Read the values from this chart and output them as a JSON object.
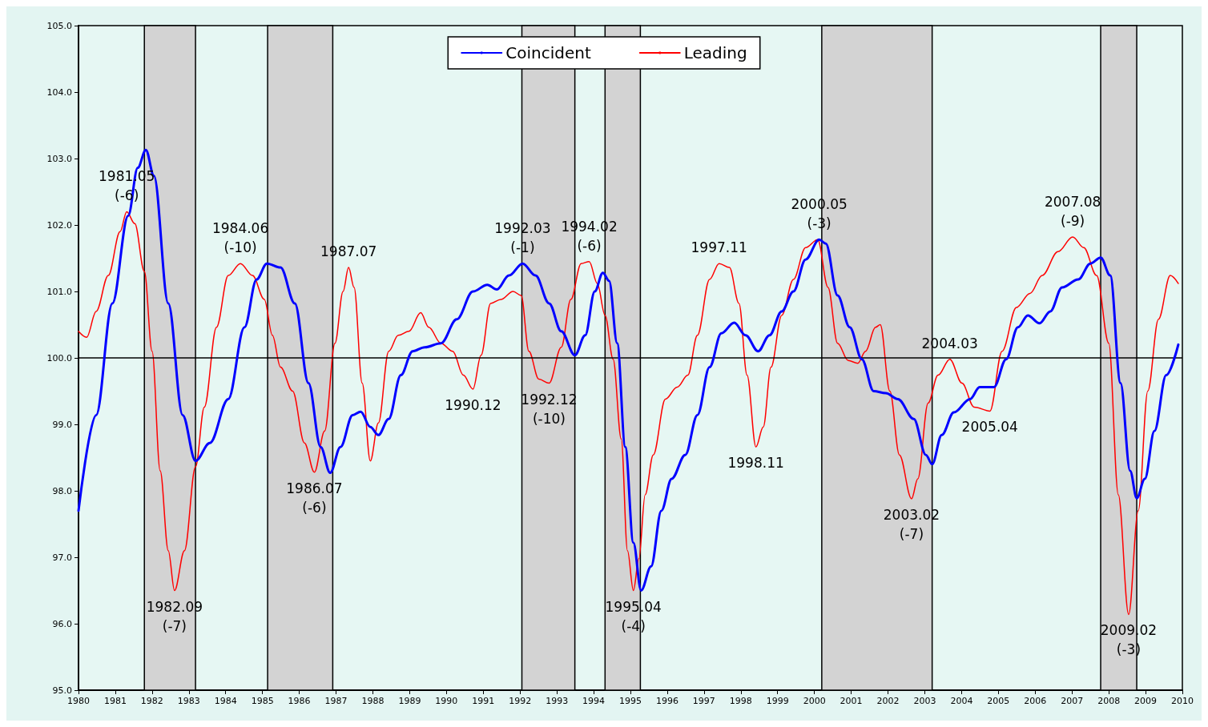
{
  "chart_data": {
    "type": "line",
    "xlim": [
      1980,
      2010
    ],
    "ylim": [
      95,
      105
    ],
    "xticks": [
      1980,
      1981,
      1982,
      1983,
      1984,
      1985,
      1986,
      1987,
      1988,
      1989,
      1990,
      1991,
      1992,
      1993,
      1994,
      1995,
      1996,
      1997,
      1998,
      1999,
      2000,
      2001,
      2002,
      2003,
      2004,
      2005,
      2006,
      2007,
      2008,
      2009,
      2010
    ],
    "yticks": [
      {
        "value": 95,
        "label": "95.0"
      },
      {
        "value": 96,
        "label": "96.0"
      },
      {
        "value": 97,
        "label": "97.0"
      },
      {
        "value": 98,
        "label": "98.0"
      },
      {
        "value": 99,
        "label": "99.0"
      },
      {
        "value": 100,
        "label": "100.0"
      },
      {
        "value": 101,
        "label": "101.0"
      },
      {
        "value": 102,
        "label": "102.0"
      },
      {
        "value": 103,
        "label": "103.0"
      },
      {
        "value": 104,
        "label": "104.0"
      },
      {
        "value": 105,
        "label": "105.0"
      }
    ],
    "grid": false,
    "legend": "top",
    "marker": "none",
    "line_style": "solid",
    "series": [
      {
        "name": "Coincident",
        "color": "#0000ff",
        "x": [
          1980.0,
          1980.48,
          1980.92,
          1981.35,
          1981.61,
          1981.83,
          1982.05,
          1982.44,
          1982.83,
          1983.18,
          1983.57,
          1984.07,
          1984.51,
          1984.84,
          1985.12,
          1985.49,
          1985.88,
          1986.25,
          1986.58,
          1986.84,
          1987.12,
          1987.45,
          1987.67,
          1987.93,
          1988.15,
          1988.43,
          1988.76,
          1989.08,
          1989.41,
          1989.85,
          1990.28,
          1990.72,
          1991.11,
          1991.37,
          1991.7,
          1992.07,
          1992.42,
          1992.79,
          1993.12,
          1993.49,
          1993.77,
          1994.03,
          1994.25,
          1994.42,
          1994.64,
          1994.86,
          1995.08,
          1995.29,
          1995.56,
          1995.84,
          1996.12,
          1996.49,
          1996.82,
          1997.15,
          1997.47,
          1997.82,
          1998.13,
          1998.47,
          1998.78,
          1999.11,
          1999.43,
          1999.76,
          2000.13,
          2000.31,
          2000.63,
          2000.96,
          2001.29,
          2001.61,
          2001.94,
          2002.27,
          2002.7,
          2003.03,
          2003.2,
          2003.46,
          2003.79,
          2004.23,
          2004.49,
          2004.88,
          2005.21,
          2005.53,
          2005.8,
          2006.12,
          2006.41,
          2006.73,
          2007.17,
          2007.5,
          2007.78,
          2008.04,
          2008.32,
          2008.58,
          2008.76,
          2008.98,
          2009.24,
          2009.56,
          2009.89
        ],
        "values": [
          97.7,
          99.14,
          100.82,
          102.14,
          102.86,
          103.13,
          102.74,
          100.82,
          99.14,
          98.45,
          98.72,
          99.38,
          100.46,
          101.18,
          101.42,
          101.36,
          100.82,
          99.62,
          98.66,
          98.27,
          98.66,
          99.14,
          99.19,
          98.96,
          98.84,
          99.08,
          99.74,
          100.1,
          100.16,
          100.22,
          100.58,
          101.0,
          101.1,
          101.03,
          101.24,
          101.42,
          101.24,
          100.82,
          100.4,
          100.04,
          100.34,
          101.0,
          101.28,
          101.16,
          100.22,
          98.66,
          97.22,
          96.5,
          96.86,
          97.7,
          98.18,
          98.54,
          99.14,
          99.86,
          100.37,
          100.53,
          100.34,
          100.1,
          100.34,
          100.7,
          101.0,
          101.48,
          101.78,
          101.72,
          100.94,
          100.46,
          99.98,
          99.5,
          99.47,
          99.38,
          99.08,
          98.54,
          98.4,
          98.84,
          99.18,
          99.38,
          99.56,
          99.56,
          99.98,
          100.46,
          100.64,
          100.52,
          100.7,
          101.06,
          101.18,
          101.42,
          101.51,
          101.24,
          99.62,
          98.3,
          97.89,
          98.18,
          98.9,
          99.74,
          100.2
        ]
      },
      {
        "name": "Leading",
        "color": "#ff0000",
        "x": [
          1980.0,
          1980.22,
          1980.48,
          1980.81,
          1981.13,
          1981.31,
          1981.53,
          1981.79,
          1982.0,
          1982.22,
          1982.44,
          1982.61,
          1982.88,
          1983.18,
          1983.42,
          1983.75,
          1984.07,
          1984.4,
          1984.73,
          1985.05,
          1985.27,
          1985.49,
          1985.82,
          1986.14,
          1986.41,
          1986.69,
          1986.97,
          1987.19,
          1987.34,
          1987.49,
          1987.71,
          1987.93,
          1988.15,
          1988.43,
          1988.69,
          1988.98,
          1989.3,
          1989.52,
          1989.85,
          1990.17,
          1990.46,
          1990.72,
          1990.94,
          1991.2,
          1991.48,
          1991.81,
          1992.03,
          1992.24,
          1992.51,
          1992.79,
          1993.12,
          1993.38,
          1993.66,
          1993.88,
          1994.1,
          1994.31,
          1994.53,
          1994.75,
          1994.92,
          1995.08,
          1995.23,
          1995.4,
          1995.62,
          1995.95,
          1996.27,
          1996.56,
          1996.82,
          1997.15,
          1997.41,
          1997.69,
          1997.95,
          1998.17,
          1998.41,
          1998.61,
          1998.82,
          1999.11,
          1999.43,
          1999.76,
          2000.09,
          2000.37,
          2000.63,
          2000.92,
          2001.18,
          2001.39,
          2001.66,
          2001.79,
          2002.05,
          2002.31,
          2002.64,
          2002.81,
          2003.09,
          2003.36,
          2003.68,
          2004.01,
          2004.34,
          2004.77,
          2005.1,
          2005.49,
          2005.86,
          2006.19,
          2006.62,
          2007.02,
          2007.32,
          2007.67,
          2008.0,
          2008.26,
          2008.54,
          2008.8,
          2009.06,
          2009.35,
          2009.67,
          2009.89
        ],
        "values": [
          100.4,
          100.31,
          100.7,
          101.24,
          101.9,
          102.2,
          102.02,
          101.3,
          100.1,
          98.3,
          97.1,
          96.5,
          97.1,
          98.36,
          99.26,
          100.46,
          101.24,
          101.42,
          101.24,
          100.88,
          100.34,
          99.86,
          99.5,
          98.72,
          98.28,
          98.9,
          100.22,
          101.0,
          101.36,
          101.06,
          99.62,
          98.45,
          99.02,
          100.1,
          100.34,
          100.4,
          100.68,
          100.46,
          100.22,
          100.1,
          99.74,
          99.53,
          100.04,
          100.82,
          100.88,
          101.0,
          100.94,
          100.1,
          99.68,
          99.62,
          100.16,
          100.88,
          101.42,
          101.45,
          101.12,
          100.64,
          99.98,
          98.78,
          97.1,
          96.5,
          96.98,
          97.94,
          98.54,
          99.38,
          99.56,
          99.74,
          100.34,
          101.18,
          101.42,
          101.36,
          100.82,
          99.74,
          98.66,
          98.96,
          99.86,
          100.64,
          101.18,
          101.66,
          101.78,
          101.06,
          100.22,
          99.96,
          99.92,
          100.1,
          100.46,
          100.5,
          99.5,
          98.54,
          97.88,
          98.18,
          99.32,
          99.74,
          99.98,
          99.62,
          99.26,
          99.2,
          100.1,
          100.76,
          100.97,
          101.24,
          101.6,
          101.82,
          101.66,
          101.24,
          100.22,
          97.94,
          96.14,
          97.7,
          99.5,
          100.58,
          101.24,
          101.12
        ]
      }
    ],
    "ref_lines": [
      {
        "axis": "y",
        "value": 100,
        "color": "#000000",
        "line_style": "solid"
      }
    ],
    "bands": [
      {
        "axis": "x",
        "from": 1981.79,
        "to": 1983.18,
        "color": "#d3d3d3"
      },
      {
        "axis": "x",
        "from": 1985.14,
        "to": 1986.91,
        "color": "#d3d3d3"
      },
      {
        "axis": "x",
        "from": 1992.05,
        "to": 1993.49,
        "color": "#d3d3d3"
      },
      {
        "axis": "x",
        "from": 1994.31,
        "to": 1995.27,
        "color": "#d3d3d3"
      },
      {
        "axis": "x",
        "from": 2000.2,
        "to": 2003.2,
        "color": "#d3d3d3"
      },
      {
        "axis": "x",
        "from": 2007.78,
        "to": 2008.76,
        "color": "#d3d3d3"
      }
    ],
    "annotations": [
      {
        "text": "1981.05\n(-6)",
        "x": 1981.31,
        "y": 102.2
      },
      {
        "text": "1982.09\n(-7)",
        "x": 1982.61,
        "y": 96.5
      },
      {
        "text": "1984.06\n(-10)",
        "x": 1984.4,
        "y": 101.42
      },
      {
        "text": "1986.07\n(-6)",
        "x": 1986.41,
        "y": 98.28
      },
      {
        "text": "1987.07",
        "x": 1987.34,
        "y": 101.36
      },
      {
        "text": "1990.12",
        "x": 1990.72,
        "y": 99.53
      },
      {
        "text": "1992.03\n(-1)",
        "x": 1992.07,
        "y": 101.42
      },
      {
        "text": "1992.12\n(-10)",
        "x": 1992.79,
        "y": 99.62
      },
      {
        "text": "1994.02\n(-6)",
        "x": 1993.88,
        "y": 101.45
      },
      {
        "text": "1995.04\n(-4)",
        "x": 1995.08,
        "y": 96.5
      },
      {
        "text": "1997.11",
        "x": 1997.41,
        "y": 101.42
      },
      {
        "text": "1998.11",
        "x": 1998.41,
        "y": 98.66
      },
      {
        "text": "2000.05\n(-3)",
        "x": 2000.13,
        "y": 101.78
      },
      {
        "text": "2003.02\n(-7)",
        "x": 2002.64,
        "y": 97.88
      },
      {
        "text": "2004.03",
        "x": 2003.68,
        "y": 99.98
      },
      {
        "text": "2005.04",
        "x": 2004.77,
        "y": 99.2
      },
      {
        "text": "2007.08\n(-9)",
        "x": 2007.02,
        "y": 101.82
      },
      {
        "text": "2009.02\n(-3)",
        "x": 2008.54,
        "y": 96.14
      }
    ]
  }
}
